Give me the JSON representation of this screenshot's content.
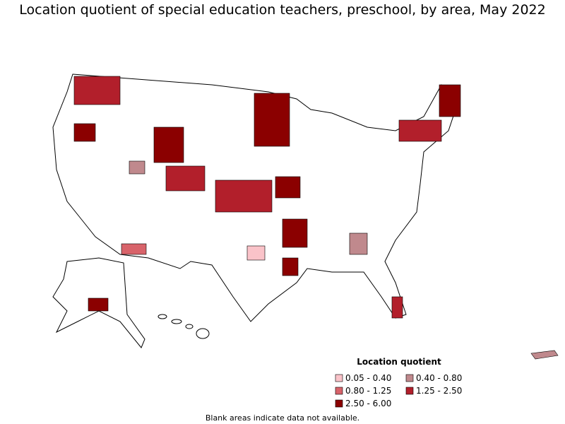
{
  "title": "Location quotient of special education teachers, preschool, by area, May 2022",
  "legend": {
    "title": "Location quotient",
    "items": [
      {
        "label": "0.05 - 0.40",
        "color": "#fac3c9"
      },
      {
        "label": "0.40 - 0.80",
        "color": "#c0898d"
      },
      {
        "label": "0.80 - 1.25",
        "color": "#d8636a"
      },
      {
        "label": "1.25 - 2.50",
        "color": "#b21f2b"
      },
      {
        "label": "2.50 - 6.00",
        "color": "#8b0000"
      }
    ]
  },
  "footnote": "Blank areas indicate data not available."
}
